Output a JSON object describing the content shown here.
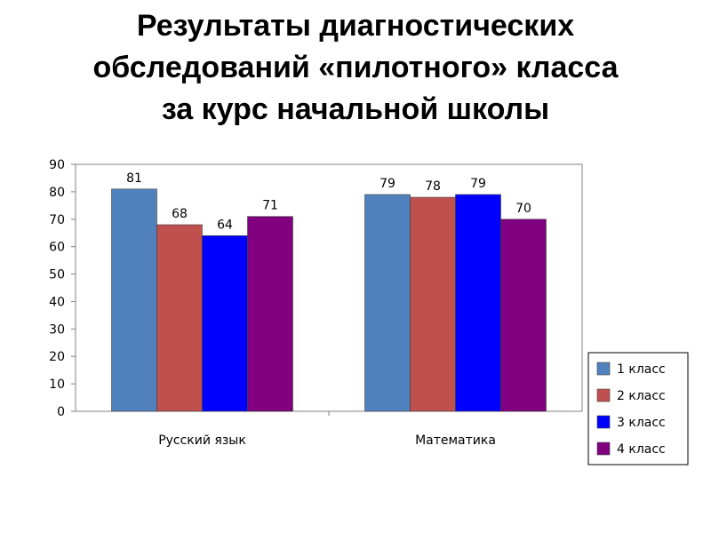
{
  "title_lines": [
    "Результаты диагностических",
    "обследований «пилотного» класса",
    "за курс начальной школы"
  ],
  "chart_data": {
    "type": "bar",
    "title": "Результаты диагностических обследований «пилотного» класса за курс начальной школы",
    "categories": [
      "Русский язык",
      "Математика"
    ],
    "series": [
      {
        "name": "1 класс",
        "values": [
          81,
          79
        ],
        "color": "#4f81bd"
      },
      {
        "name": "2 класс",
        "values": [
          68,
          78
        ],
        "color": "#c0504d"
      },
      {
        "name": "3 класс",
        "values": [
          64,
          79
        ],
        "color": "#0000ff"
      },
      {
        "name": "4 класс",
        "values": [
          71,
          70
        ],
        "color": "#800080"
      }
    ],
    "ylim": [
      0,
      90
    ],
    "yticks": [
      0,
      10,
      20,
      30,
      40,
      50,
      60,
      70,
      80,
      90
    ],
    "grid": false,
    "data_labels": true,
    "legend_position": "right"
  }
}
